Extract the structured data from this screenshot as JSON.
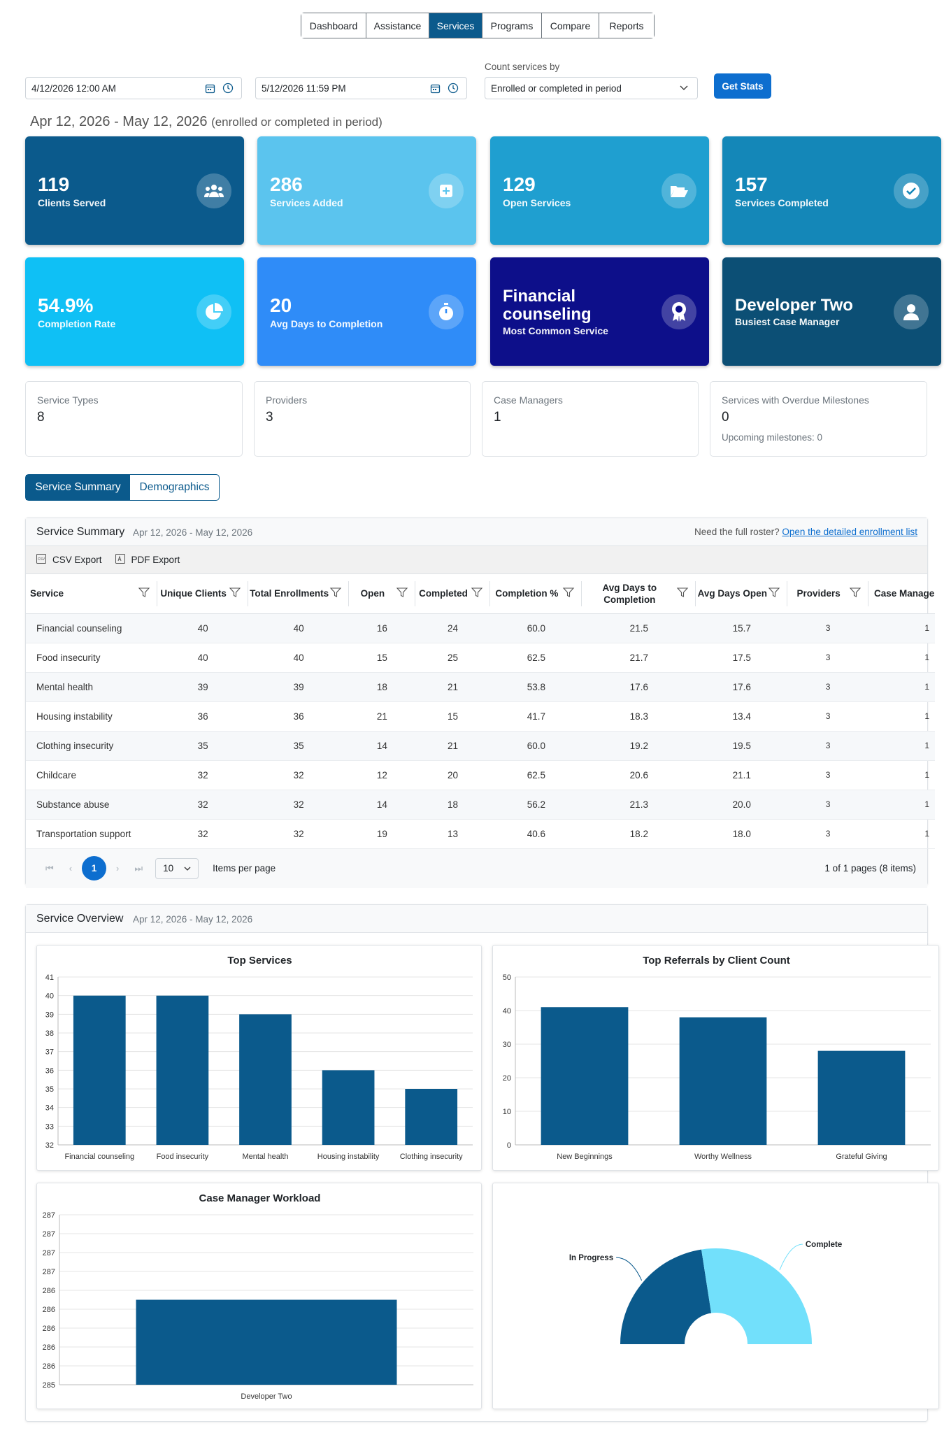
{
  "nav": {
    "tabs": [
      "Dashboard",
      "Assistance",
      "Services",
      "Programs",
      "Compare",
      "Reports"
    ],
    "active": "Services"
  },
  "filters": {
    "start": "4/12/2026 12:00 AM",
    "end": "5/12/2026 11:59 PM",
    "count_label": "Count services by",
    "count_value": "Enrolled or completed in period",
    "button": "Get Stats"
  },
  "period": {
    "range": "Apr 12, 2026 - May 12, 2026",
    "mode": "(enrolled or completed in period)"
  },
  "kpis": [
    {
      "value": "119",
      "label": "Clients Served",
      "icon": "users-icon",
      "color": "#0b5a8c"
    },
    {
      "value": "286",
      "label": "Services Added",
      "icon": "plus-square-icon",
      "color": "#5bc4ee"
    },
    {
      "value": "129",
      "label": "Open Services",
      "icon": "folder-open-icon",
      "color": "#1f9fd0"
    },
    {
      "value": "157",
      "label": "Services Completed",
      "icon": "check-circle-icon",
      "color": "#1487b8"
    },
    {
      "value": "54.9%",
      "label": "Completion Rate",
      "icon": "pie-chart-icon",
      "color": "#0fc0f5"
    },
    {
      "value": "20",
      "label": "Avg Days to Completion",
      "icon": "stopwatch-icon",
      "color": "#2f8cf8"
    },
    {
      "value": "Financial counseling",
      "label": "Most Common Service",
      "icon": "award-icon",
      "color": "#0d0f8a"
    },
    {
      "value": "Developer Two",
      "label": "Busiest Case Manager",
      "icon": "user-icon",
      "color": "#0c4f75"
    }
  ],
  "stats": [
    {
      "title": "Service Types",
      "value": "8"
    },
    {
      "title": "Providers",
      "value": "3"
    },
    {
      "title": "Case Managers",
      "value": "1"
    },
    {
      "title": "Services with Overdue Milestones",
      "value": "0",
      "sub": "Upcoming milestones: 0"
    }
  ],
  "toggle": {
    "a": "Service Summary",
    "b": "Demographics"
  },
  "summary": {
    "title": "Service Summary",
    "date": "Apr 12, 2026 - May 12, 2026",
    "roster_text": "Need the full roster?",
    "roster_link": "Open the detailed enrollment list",
    "csv": "CSV Export",
    "pdf": "PDF Export",
    "headers": [
      "Service",
      "Unique Clients",
      "Total Enrollments",
      "Open",
      "Completed",
      "Completion %",
      "Avg Days to Completion",
      "Avg Days Open",
      "Providers",
      "Case Manage"
    ],
    "rows": [
      [
        "Financial counseling",
        "40",
        "40",
        "16",
        "24",
        "60.0",
        "21.5",
        "15.7",
        "3",
        "1"
      ],
      [
        "Food insecurity",
        "40",
        "40",
        "15",
        "25",
        "62.5",
        "21.7",
        "17.5",
        "3",
        "1"
      ],
      [
        "Mental health",
        "39",
        "39",
        "18",
        "21",
        "53.8",
        "17.6",
        "17.6",
        "3",
        "1"
      ],
      [
        "Housing instability",
        "36",
        "36",
        "21",
        "15",
        "41.7",
        "18.3",
        "13.4",
        "3",
        "1"
      ],
      [
        "Clothing insecurity",
        "35",
        "35",
        "14",
        "21",
        "60.0",
        "19.2",
        "19.5",
        "3",
        "1"
      ],
      [
        "Childcare",
        "32",
        "32",
        "12",
        "20",
        "62.5",
        "20.6",
        "21.1",
        "3",
        "1"
      ],
      [
        "Substance abuse",
        "32",
        "32",
        "14",
        "18",
        "56.2",
        "21.3",
        "20.0",
        "3",
        "1"
      ],
      [
        "Transportation support",
        "32",
        "32",
        "19",
        "13",
        "40.6",
        "18.2",
        "18.0",
        "3",
        "1"
      ]
    ],
    "pager": {
      "page": "1",
      "per_page": "10",
      "per_page_label": "Items per page",
      "info": "1 of 1 pages (8 items)"
    }
  },
  "overview": {
    "title": "Service Overview",
    "date": "Apr 12, 2026 - May 12, 2026"
  },
  "chart_data": [
    {
      "type": "bar",
      "title": "Top Services",
      "categories": [
        "Financial counseling",
        "Food insecurity",
        "Mental health",
        "Housing instability",
        "Clothing insecurity"
      ],
      "values": [
        40,
        40,
        39,
        36,
        35
      ],
      "ylim": [
        32,
        41
      ],
      "yticks": [
        "32",
        "33",
        "34",
        "35",
        "36",
        "37",
        "38",
        "39",
        "40",
        "41"
      ],
      "color": "#0b5a8c"
    },
    {
      "type": "bar",
      "title": "Top Referrals by Client Count",
      "categories": [
        "New Beginnings",
        "Worthy Wellness",
        "Grateful Giving"
      ],
      "values": [
        41,
        38,
        28
      ],
      "ylim": [
        0,
        50
      ],
      "yticks": [
        "0",
        "10",
        "20",
        "30",
        "40",
        "50"
      ],
      "color": "#0b5a8c"
    },
    {
      "type": "bar",
      "title": "Case Manager Workload",
      "categories": [
        "Developer Two"
      ],
      "values": [
        286
      ],
      "ylim": [
        285,
        287
      ],
      "yticks": [
        "285",
        "286",
        "286",
        "286",
        "286",
        "286",
        "287",
        "287",
        "287",
        "287"
      ],
      "color": "#0b5a8c"
    },
    {
      "type": "pie",
      "categories": [
        "In Progress",
        "Complete"
      ],
      "values": [
        45.1,
        54.9
      ],
      "colors": [
        "#0b5a8c",
        "#72e0fb"
      ]
    }
  ]
}
